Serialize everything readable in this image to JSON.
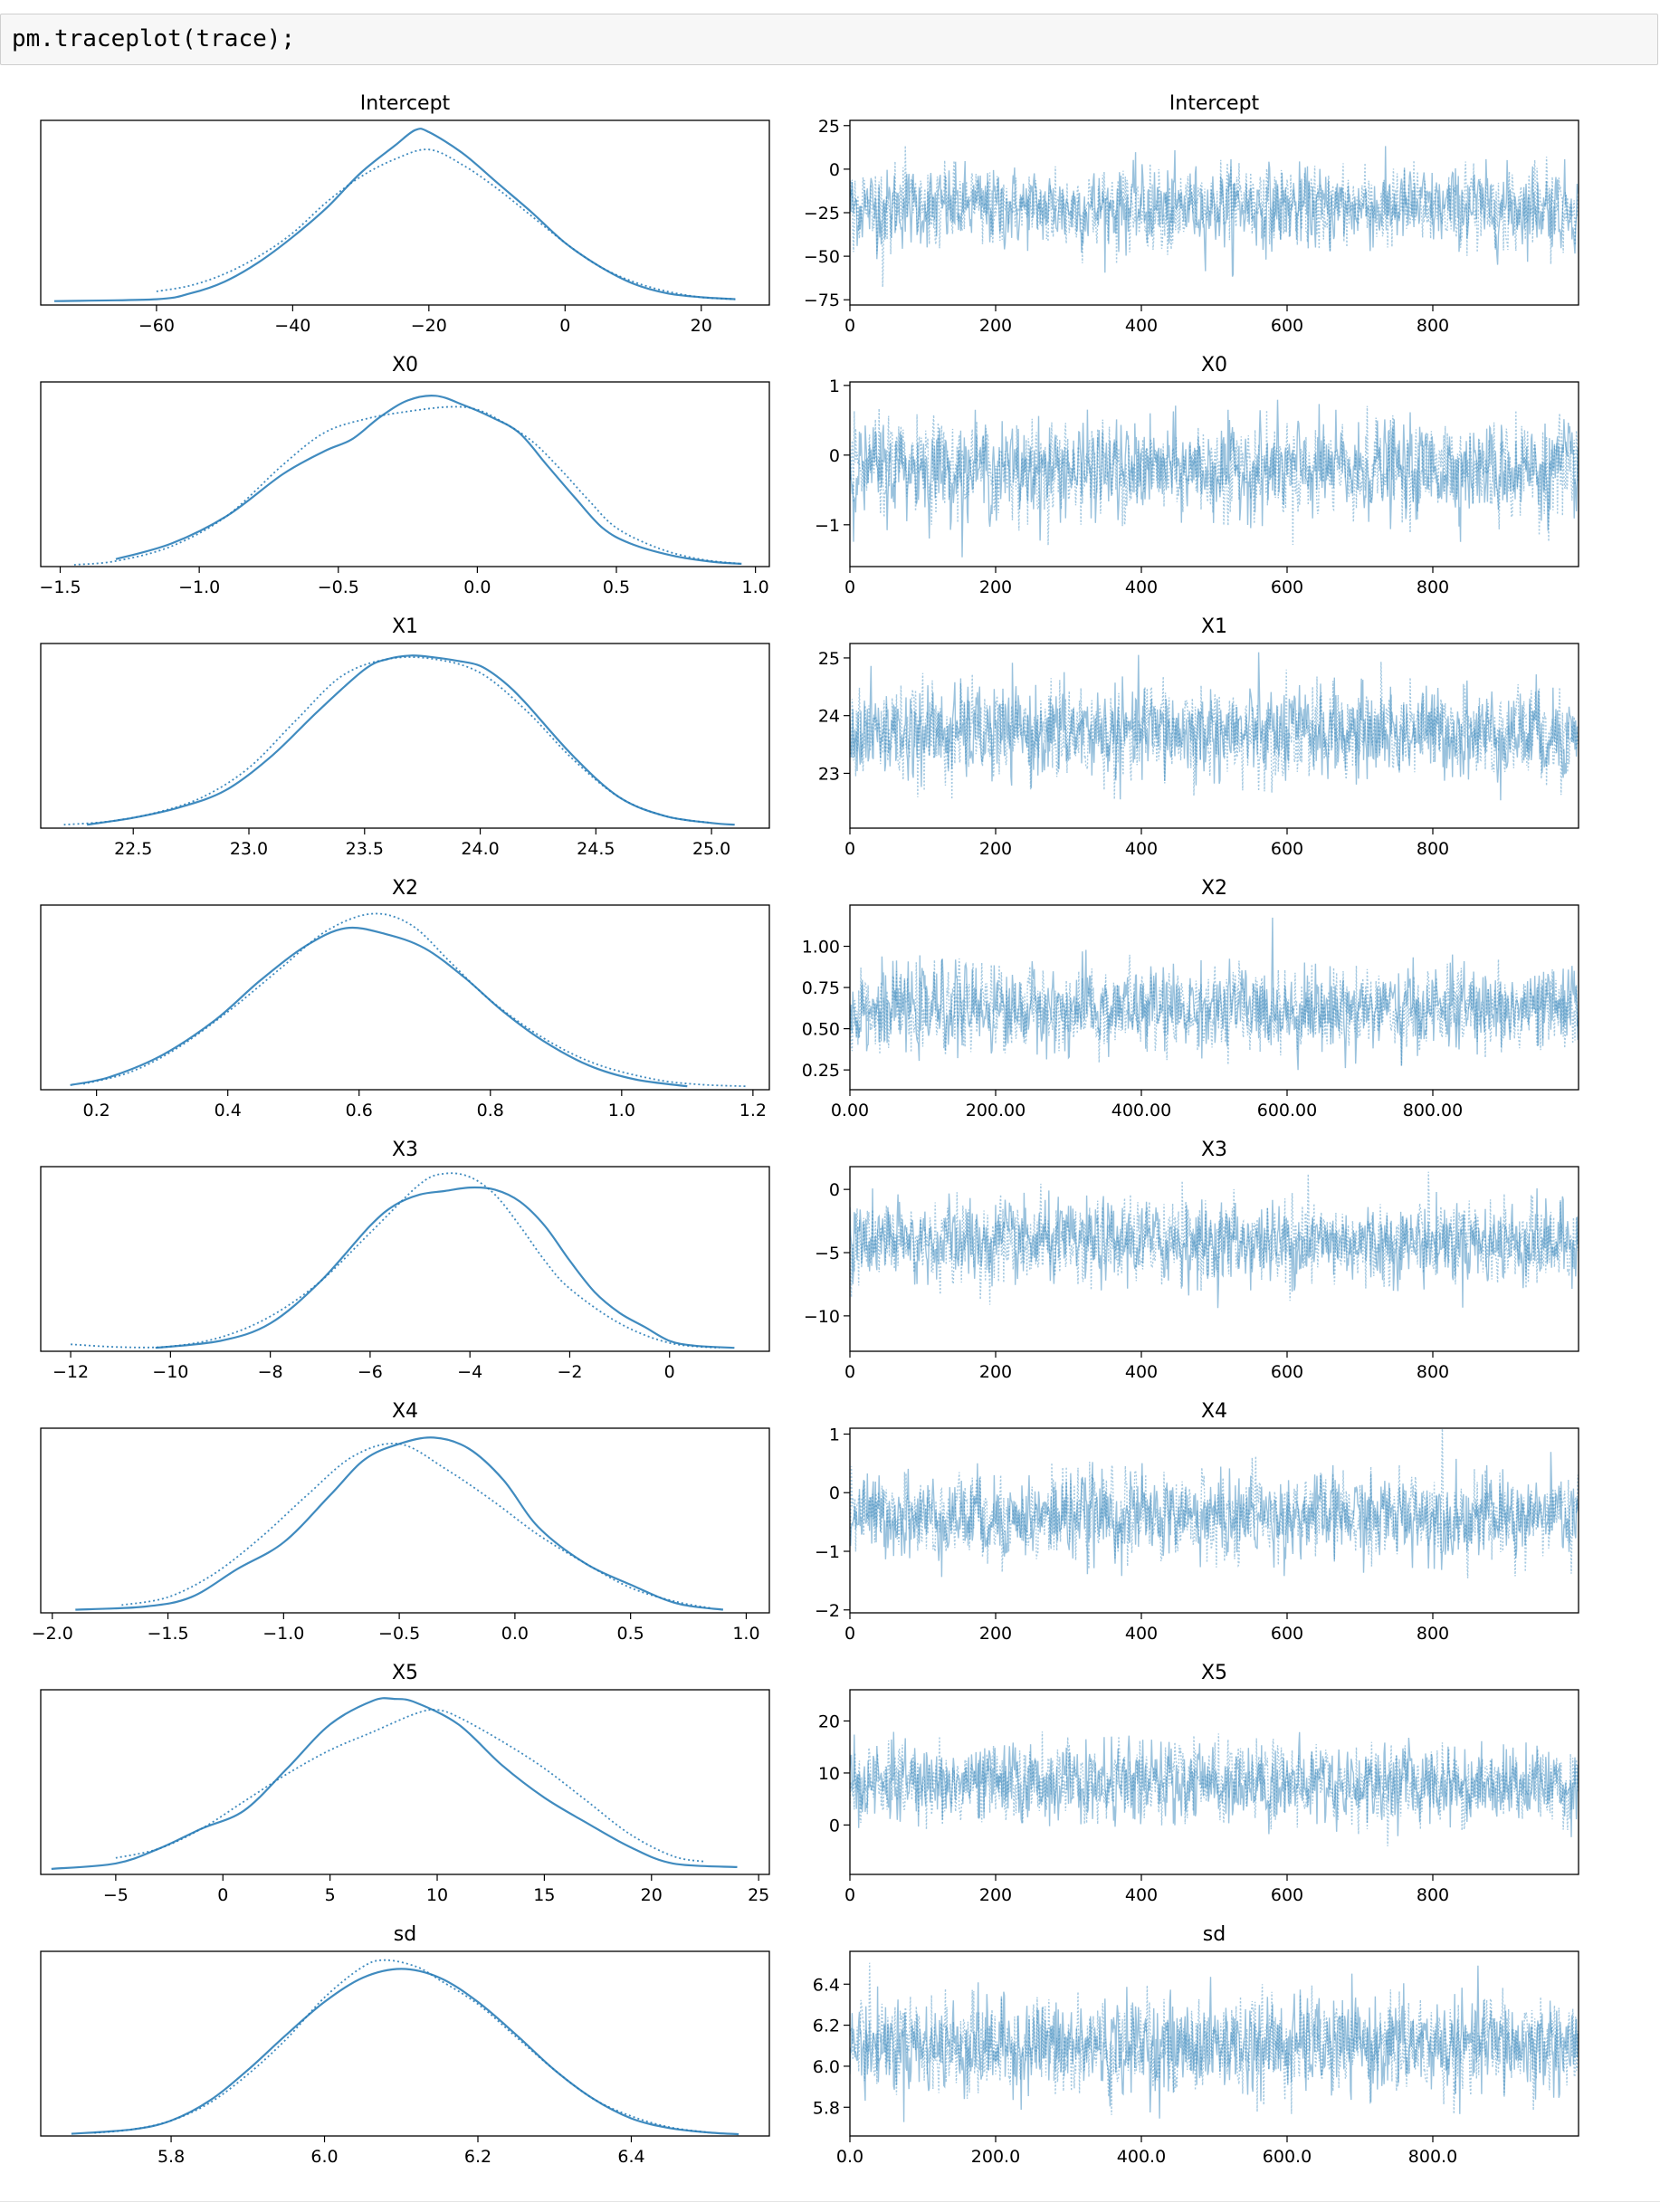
{
  "cell": {
    "code": "pm.traceplot(trace);"
  },
  "chart_data": [
    {
      "type": "line",
      "title": "Intercept",
      "panel": "density",
      "xticks": [
        -60,
        -40,
        -20,
        0,
        20
      ],
      "xlim": [
        -77,
        30
      ],
      "series": [
        {
          "style": "solid",
          "x": [
            -75,
            -60,
            -55,
            -50,
            -45,
            -40,
            -35,
            -30,
            -25,
            -22,
            -20,
            -15,
            -10,
            -5,
            0,
            5,
            10,
            15,
            20,
            25
          ],
          "y": [
            0.002,
            0.003,
            0.006,
            0.012,
            0.022,
            0.035,
            0.05,
            0.068,
            0.082,
            0.09,
            0.089,
            0.078,
            0.063,
            0.048,
            0.032,
            0.02,
            0.011,
            0.006,
            0.004,
            0.003
          ]
        },
        {
          "style": "dotted",
          "x": [
            -60,
            -55,
            -50,
            -45,
            -40,
            -35,
            -30,
            -25,
            -20,
            -15,
            -10,
            -5,
            0,
            5,
            10,
            15,
            20,
            25
          ],
          "y": [
            0.007,
            0.01,
            0.016,
            0.025,
            0.037,
            0.053,
            0.066,
            0.075,
            0.08,
            0.072,
            0.06,
            0.046,
            0.032,
            0.02,
            0.012,
            0.007,
            0.004,
            0.003
          ]
        }
      ],
      "ylim": [
        0,
        0.095
      ]
    },
    {
      "type": "line",
      "title": "Intercept",
      "panel": "trace",
      "xticks": [
        0,
        200,
        400,
        600,
        800
      ],
      "yticks": [
        25,
        0,
        -25,
        -50,
        -75
      ],
      "xlim": [
        0,
        1000
      ],
      "ylim": [
        -78,
        28
      ],
      "trace": {
        "mean": -22,
        "sd": 13
      }
    },
    {
      "type": "line",
      "title": "X0",
      "panel": "density",
      "xticks": [
        -1.5,
        -1.0,
        -0.5,
        0.0,
        0.5,
        1.0
      ],
      "xlim": [
        -1.57,
        1.05
      ],
      "series": [
        {
          "style": "solid",
          "x": [
            -1.3,
            -1.1,
            -0.9,
            -0.7,
            -0.55,
            -0.45,
            -0.35,
            -0.25,
            -0.15,
            -0.05,
            0.05,
            0.15,
            0.25,
            0.35,
            0.45,
            0.55,
            0.7,
            0.85,
            0.95
          ],
          "y": [
            0.08,
            0.25,
            0.55,
            1.0,
            1.25,
            1.38,
            1.62,
            1.8,
            1.85,
            1.75,
            1.62,
            1.45,
            1.1,
            0.75,
            0.42,
            0.25,
            0.12,
            0.05,
            0.03
          ]
        },
        {
          "style": "dotted",
          "x": [
            -1.45,
            -1.3,
            -1.1,
            -0.9,
            -0.7,
            -0.55,
            -0.4,
            -0.25,
            -0.1,
            0.0,
            0.1,
            0.2,
            0.3,
            0.4,
            0.5,
            0.65,
            0.8,
            0.95
          ],
          "y": [
            0.02,
            0.06,
            0.22,
            0.55,
            1.1,
            1.45,
            1.6,
            1.68,
            1.73,
            1.7,
            1.55,
            1.35,
            1.05,
            0.72,
            0.42,
            0.2,
            0.08,
            0.03
          ]
        }
      ],
      "ylim": [
        0,
        2.0
      ]
    },
    {
      "type": "line",
      "title": "X0",
      "panel": "trace",
      "xticks": [
        0,
        200,
        400,
        600,
        800
      ],
      "yticks": [
        1,
        0,
        -1
      ],
      "xlim": [
        0,
        1000
      ],
      "ylim": [
        -1.6,
        1.05
      ],
      "trace": {
        "mean": -0.2,
        "sd": 0.38
      }
    },
    {
      "type": "line",
      "title": "X1",
      "panel": "density",
      "xticks": [
        22.5,
        23.0,
        23.5,
        24.0,
        24.5,
        25.0
      ],
      "xlim": [
        22.1,
        25.25
      ],
      "series": [
        {
          "style": "solid",
          "x": [
            22.3,
            22.5,
            22.7,
            22.9,
            23.1,
            23.3,
            23.5,
            23.6,
            23.7,
            23.8,
            23.9,
            24.0,
            24.1,
            24.2,
            24.4,
            24.6,
            24.8,
            25.0,
            25.1
          ],
          "y": [
            0.02,
            0.06,
            0.12,
            0.22,
            0.42,
            0.68,
            0.92,
            0.98,
            1.0,
            0.99,
            0.97,
            0.94,
            0.85,
            0.72,
            0.42,
            0.18,
            0.07,
            0.03,
            0.02
          ]
        },
        {
          "style": "dotted",
          "x": [
            22.2,
            22.4,
            22.6,
            22.8,
            23.0,
            23.2,
            23.4,
            23.6,
            23.8,
            24.0,
            24.2,
            24.4,
            24.6,
            24.8,
            25.0
          ],
          "y": [
            0.02,
            0.04,
            0.09,
            0.18,
            0.35,
            0.62,
            0.88,
            0.98,
            0.98,
            0.9,
            0.68,
            0.4,
            0.18,
            0.07,
            0.03
          ]
        }
      ],
      "ylim": [
        0,
        1.07
      ]
    },
    {
      "type": "line",
      "title": "X1",
      "panel": "trace",
      "xticks": [
        0,
        200,
        400,
        600,
        800
      ],
      "yticks": [
        25,
        24,
        23
      ],
      "xlim": [
        0,
        1000
      ],
      "ylim": [
        22.05,
        25.25
      ],
      "trace": {
        "mean": 23.7,
        "sd": 0.45
      }
    },
    {
      "type": "line",
      "title": "X2",
      "panel": "density",
      "xticks": [
        0.2,
        0.4,
        0.6,
        0.8,
        1.0,
        1.2
      ],
      "xlim": [
        0.115,
        1.225
      ],
      "series": [
        {
          "style": "solid",
          "x": [
            0.16,
            0.22,
            0.3,
            0.38,
            0.45,
            0.52,
            0.58,
            0.64,
            0.7,
            0.76,
            0.82,
            0.88,
            0.95,
            1.02,
            1.1
          ],
          "y": [
            0.08,
            0.22,
            0.6,
            1.2,
            1.9,
            2.5,
            2.8,
            2.7,
            2.45,
            1.95,
            1.35,
            0.85,
            0.42,
            0.18,
            0.06
          ]
        },
        {
          "style": "dotted",
          "x": [
            0.18,
            0.25,
            0.32,
            0.4,
            0.48,
            0.55,
            0.62,
            0.68,
            0.74,
            0.8,
            0.88,
            0.96,
            1.05,
            1.12,
            1.19
          ],
          "y": [
            0.1,
            0.3,
            0.7,
            1.35,
            2.1,
            2.75,
            3.05,
            2.85,
            2.2,
            1.55,
            0.9,
            0.45,
            0.18,
            0.09,
            0.06
          ]
        }
      ],
      "ylim": [
        0,
        3.2
      ]
    },
    {
      "type": "line",
      "title": "X2",
      "panel": "trace",
      "xticks": [
        0,
        200,
        400,
        600,
        800
      ],
      "yticks": [
        1.0,
        0.75,
        0.5,
        0.25
      ],
      "xlim": [
        0,
        1000
      ],
      "ylim": [
        0.13,
        1.25
      ],
      "trace": {
        "mean": 0.62,
        "sd": 0.14
      }
    },
    {
      "type": "line",
      "title": "X3",
      "panel": "density",
      "xticks": [
        -12,
        -10,
        -8,
        -6,
        -4,
        -2,
        0
      ],
      "xlim": [
        -12.6,
        2.0
      ],
      "series": [
        {
          "style": "solid",
          "x": [
            -10.3,
            -9,
            -8,
            -7,
            -6,
            -5.5,
            -5,
            -4.5,
            -4,
            -3.5,
            -3,
            -2.5,
            -2,
            -1.5,
            -1,
            -0.5,
            0,
            0.5,
            1.3
          ],
          "y": [
            0.005,
            0.015,
            0.04,
            0.1,
            0.18,
            0.21,
            0.225,
            0.23,
            0.235,
            0.232,
            0.215,
            0.18,
            0.13,
            0.085,
            0.055,
            0.035,
            0.015,
            0.008,
            0.005
          ]
        },
        {
          "style": "dotted",
          "x": [
            -12,
            -11,
            -10,
            -9,
            -8,
            -7,
            -6,
            -5,
            -4.5,
            -4,
            -3.5,
            -3,
            -2.5,
            -2,
            -1,
            0,
            1
          ],
          "y": [
            0.01,
            0.006,
            0.007,
            0.02,
            0.05,
            0.1,
            0.17,
            0.24,
            0.255,
            0.25,
            0.225,
            0.18,
            0.13,
            0.09,
            0.04,
            0.012,
            0.005
          ]
        }
      ],
      "ylim": [
        0,
        0.265
      ]
    },
    {
      "type": "line",
      "title": "X3",
      "panel": "trace",
      "xticks": [
        0,
        200,
        400,
        600,
        800
      ],
      "yticks": [
        0,
        -5,
        -10
      ],
      "xlim": [
        0,
        1000
      ],
      "ylim": [
        -12.8,
        1.8
      ],
      "trace": {
        "mean": -4.2,
        "sd": 1.8
      }
    },
    {
      "type": "line",
      "title": "X4",
      "panel": "density",
      "xticks": [
        -2.0,
        -1.5,
        -1.0,
        -0.5,
        0.0,
        0.5,
        1.0
      ],
      "xlim": [
        -2.05,
        1.1
      ],
      "series": [
        {
          "style": "solid",
          "x": [
            -1.9,
            -1.6,
            -1.4,
            -1.2,
            -1.0,
            -0.8,
            -0.65,
            -0.5,
            -0.35,
            -0.2,
            -0.05,
            0.1,
            0.3,
            0.5,
            0.7,
            0.9
          ],
          "y": [
            0.02,
            0.04,
            0.1,
            0.28,
            0.45,
            0.75,
            0.98,
            1.08,
            1.12,
            1.05,
            0.85,
            0.55,
            0.32,
            0.18,
            0.06,
            0.02
          ]
        },
        {
          "style": "dotted",
          "x": [
            -1.7,
            -1.5,
            -1.3,
            -1.1,
            -0.9,
            -0.7,
            -0.5,
            -0.3,
            -0.1,
            0.1,
            0.3,
            0.5,
            0.7,
            0.85
          ],
          "y": [
            0.05,
            0.1,
            0.25,
            0.48,
            0.75,
            1.0,
            1.08,
            0.92,
            0.72,
            0.5,
            0.32,
            0.16,
            0.07,
            0.03
          ]
        }
      ],
      "ylim": [
        0,
        1.18
      ]
    },
    {
      "type": "line",
      "title": "X4",
      "panel": "trace",
      "xticks": [
        0,
        200,
        400,
        600,
        800
      ],
      "yticks": [
        1,
        0,
        -1,
        -2
      ],
      "xlim": [
        0,
        1000
      ],
      "ylim": [
        -2.05,
        1.1
      ],
      "trace": {
        "mean": -0.4,
        "sd": 0.4
      }
    },
    {
      "type": "line",
      "title": "X5",
      "panel": "density",
      "xticks": [
        -5,
        0,
        5,
        10,
        15,
        20,
        25
      ],
      "xlim": [
        -8.5,
        25.5
      ],
      "series": [
        {
          "style": "solid",
          "x": [
            -8,
            -5,
            -3,
            -1,
            1,
            3,
            5,
            7,
            8,
            9,
            11,
            13,
            15,
            17,
            19,
            21,
            24
          ],
          "y": [
            0.003,
            0.006,
            0.014,
            0.025,
            0.035,
            0.058,
            0.082,
            0.095,
            0.096,
            0.094,
            0.082,
            0.06,
            0.042,
            0.028,
            0.015,
            0.006,
            0.004
          ]
        },
        {
          "style": "dotted",
          "x": [
            -5,
            -3,
            -1,
            1,
            3,
            5,
            7,
            9,
            10,
            11,
            13,
            15,
            17,
            19,
            21,
            22.5
          ],
          "y": [
            0.009,
            0.014,
            0.025,
            0.04,
            0.055,
            0.068,
            0.078,
            0.088,
            0.09,
            0.086,
            0.073,
            0.058,
            0.04,
            0.022,
            0.01,
            0.007
          ]
        }
      ],
      "ylim": [
        0,
        0.101
      ]
    },
    {
      "type": "line",
      "title": "X5",
      "panel": "trace",
      "xticks": [
        0,
        200,
        400,
        600,
        800
      ],
      "yticks": [
        20,
        10,
        0
      ],
      "xlim": [
        0,
        1000
      ],
      "ylim": [
        -9.5,
        26
      ],
      "trace": {
        "mean": 8,
        "sd": 4.2
      }
    },
    {
      "type": "line",
      "title": "sd",
      "panel": "density",
      "xticks": [
        5.8,
        6.0,
        6.2,
        6.4
      ],
      "xlim": [
        5.63,
        6.58
      ],
      "series": [
        {
          "style": "solid",
          "x": [
            5.67,
            5.75,
            5.8,
            5.85,
            5.9,
            5.95,
            6.0,
            6.05,
            6.1,
            6.15,
            6.2,
            6.25,
            6.3,
            6.35,
            6.4,
            6.45,
            6.5,
            6.54
          ],
          "y": [
            0.05,
            0.15,
            0.35,
            0.8,
            1.5,
            2.3,
            3.05,
            3.6,
            3.8,
            3.6,
            3.05,
            2.3,
            1.5,
            0.85,
            0.4,
            0.18,
            0.08,
            0.04
          ]
        },
        {
          "style": "dotted",
          "x": [
            5.7,
            5.75,
            5.8,
            5.85,
            5.9,
            5.95,
            6.0,
            6.05,
            6.08,
            6.12,
            6.15,
            6.2,
            6.25,
            6.3,
            6.35,
            6.4,
            6.45,
            6.5
          ],
          "y": [
            0.07,
            0.15,
            0.35,
            0.75,
            1.4,
            2.2,
            3.15,
            3.85,
            4.0,
            3.85,
            3.55,
            3.0,
            2.25,
            1.5,
            0.85,
            0.45,
            0.2,
            0.08
          ]
        }
      ],
      "ylim": [
        0,
        4.2
      ]
    },
    {
      "type": "line",
      "title": "sd",
      "panel": "trace",
      "xticks": [
        0,
        200,
        400,
        600,
        800
      ],
      "yticks": [
        6.4,
        6.2,
        6.0,
        5.8
      ],
      "xlim": [
        0,
        1000
      ],
      "ylim": [
        5.66,
        6.56
      ],
      "trace": {
        "mean": 6.1,
        "sd": 0.13
      }
    }
  ],
  "colors": {
    "line": "#1f77b4",
    "axis": "#000000",
    "text": "#000000"
  }
}
